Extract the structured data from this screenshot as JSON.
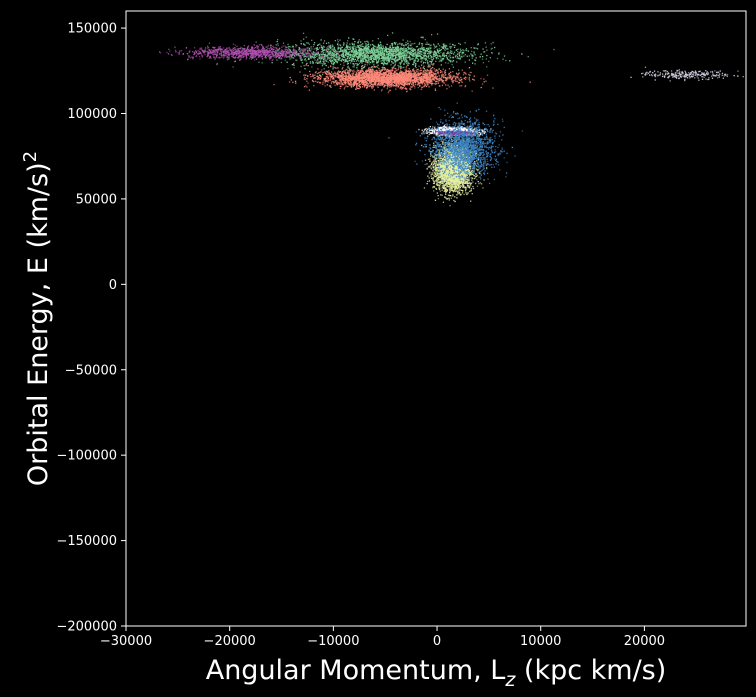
{
  "chart_data": {
    "type": "heatmap",
    "title": "",
    "xlabel": {
      "main": "Angular Momentum, L",
      "sub": "z",
      "rest": " (kpc km/s)"
    },
    "ylabel": {
      "main": "Orbital Energy, E (km/s)",
      "sup": "2"
    },
    "xlim": [
      -30000,
      29800
    ],
    "ylim": [
      -200000,
      160000
    ],
    "x_ticks": [
      -30000,
      -20000,
      -10000,
      0,
      10000,
      20000
    ],
    "x_tick_labels": [
      "−30000",
      "−20000",
      "−10000",
      "0",
      "10000",
      "20000"
    ],
    "y_ticks": [
      -200000,
      -150000,
      -100000,
      -50000,
      0,
      50000,
      100000,
      150000
    ],
    "y_tick_labels": [
      "−200000",
      "−150000",
      "−100000",
      "−50000",
      "0",
      "50000",
      "100000",
      "150000"
    ],
    "grid": false,
    "background": "#000000",
    "axis_color": "#ffffff",
    "colormap": [
      "#0b0724",
      "#3b0f70",
      "#6a3d9a",
      "#3e6ab0",
      "#4fb5c9",
      "#8fd6a5",
      "#ff8a7a",
      "#fde9a9",
      "#ffffff"
    ],
    "point_groups": [
      {
        "component": "upper accreted streak",
        "x_center": -6000,
        "x_spread": 9000,
        "y_center": 135000,
        "y_spread": 7000,
        "color": "#7fd39a",
        "n": 2200
      },
      {
        "component": "halo band",
        "x_center": -5000,
        "x_spread": 6500,
        "y_center": 121000,
        "y_spread": 5000,
        "color": "#ff8a7a",
        "n": 2600
      },
      {
        "component": "thin tail",
        "x_center": -18000,
        "x_spread": 6000,
        "y_center": 136000,
        "y_spread": 3500,
        "color": "#b04fb0",
        "n": 900
      },
      {
        "component": "ring",
        "x_center": 1500,
        "x_spread": 2200,
        "y_center": 90000,
        "y_spread": 2200,
        "color": "#ffffff",
        "n": 1200
      },
      {
        "component": "inner core",
        "x_center": 1500,
        "x_spread": 1500,
        "y_center": 89000,
        "y_spread": 1200,
        "color": "#7a2f9a",
        "n": 250
      },
      {
        "component": "disk blob",
        "x_center": 1500,
        "x_spread": 1800,
        "y_center": 68000,
        "y_spread": 13000,
        "color": "#e7f0a0",
        "n": 3000
      },
      {
        "component": "disk envelope",
        "x_center": 2500,
        "x_spread": 3000,
        "y_center": 80000,
        "y_spread": 16000,
        "color": "#3d86c6",
        "n": 1800
      },
      {
        "component": "sparse outliers",
        "x_center": 24000,
        "x_spread": 4000,
        "y_center": 123000,
        "y_spread": 2500,
        "color": "#cfcfe0",
        "n": 250
      }
    ]
  }
}
